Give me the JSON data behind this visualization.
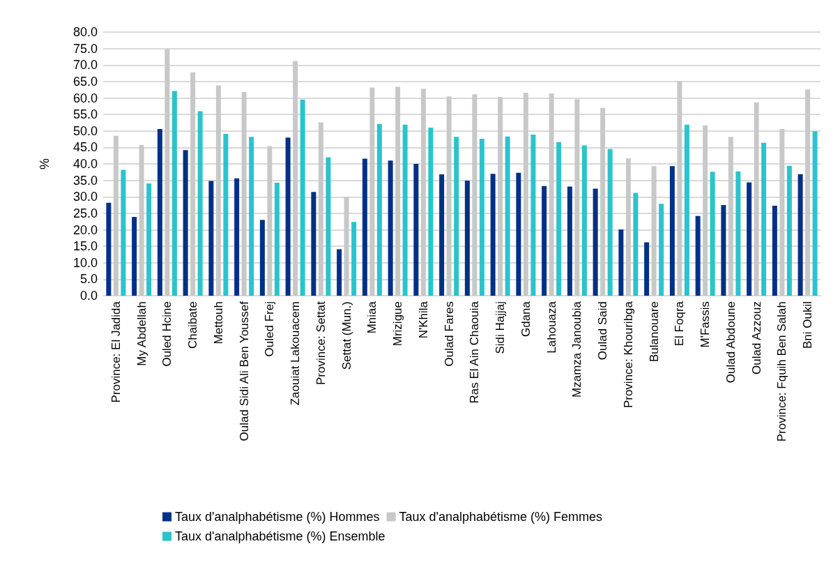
{
  "chart_data": {
    "type": "bar",
    "ylabel": "%",
    "categories": [
      "Province: El Jadida",
      "My Abdellah",
      "Ouled Hcine",
      "Chaibate",
      "Mettouh",
      "Oulad Sidi Ali Ben Youssef",
      "Ouled Frej",
      "Zaouiat Lakouacem",
      "Province: Settat",
      "Settat (Mun.)",
      "Mniaa",
      "Mrizigue",
      "N'Khila",
      "Oulad Fares",
      "Ras El Ain Chaouia",
      "Sidi Hajjaj",
      "Gdana",
      "Lahouaza",
      "Mzamza Janoubia",
      "Oulad Said",
      "Province: Khouribga",
      "Bulanouare",
      "El Foqra",
      "M'Fassis",
      "Oulad Abdoune",
      "Oulad Azzouz",
      "Province: Fquih Ben Salah",
      "Bni Oukil"
    ],
    "series": [
      {
        "name": "Taux d'analphabétisme (%) Hommes",
        "color": "#003087",
        "values": [
          28.2,
          23.9,
          50.6,
          44.2,
          34.8,
          35.6,
          23.0,
          48.0,
          31.5,
          14.1,
          41.6,
          41.0,
          40.0,
          36.8,
          34.9,
          37.0,
          37.3,
          33.3,
          33.1,
          32.5,
          20.1,
          16.2,
          39.3,
          24.2,
          27.5,
          34.4,
          27.3,
          36.9
        ]
      },
      {
        "name": "Taux d'analphabétisme (%) Femmes",
        "color": "#c8c8c8",
        "values": [
          48.5,
          45.7,
          74.8,
          67.8,
          63.8,
          61.8,
          45.4,
          71.2,
          52.6,
          30.0,
          63.2,
          63.4,
          62.8,
          60.5,
          61.1,
          60.3,
          61.6,
          61.4,
          59.6,
          57.0,
          41.7,
          39.3,
          65.2,
          51.7,
          48.2,
          58.6,
          50.6,
          62.6
        ]
      },
      {
        "name": "Taux d'analphabétisme (%) Ensemble",
        "color": "#2ac4cc",
        "values": [
          38.2,
          34.1,
          62.1,
          56.0,
          49.1,
          48.2,
          34.3,
          59.5,
          42.0,
          22.4,
          52.1,
          51.9,
          51.0,
          48.2,
          47.6,
          48.3,
          48.9,
          46.6,
          45.6,
          44.5,
          31.2,
          27.9,
          51.9,
          37.6,
          37.7,
          46.4,
          39.4,
          49.9
        ]
      }
    ],
    "ylim": [
      0,
      80
    ],
    "yticks": [
      {
        "value": 0,
        "label": "0.0"
      },
      {
        "value": 5,
        "label": "5.0"
      },
      {
        "value": 10,
        "label": "10.0"
      },
      {
        "value": 15,
        "label": "15.0"
      },
      {
        "value": 20,
        "label": "20.0"
      },
      {
        "value": 25,
        "label": "25.0"
      },
      {
        "value": 30,
        "label": "30.0"
      },
      {
        "value": 35,
        "label": "35.0"
      },
      {
        "value": 40,
        "label": "40.0"
      },
      {
        "value": 45,
        "label": "45.0"
      },
      {
        "value": 50,
        "label": "50.0"
      },
      {
        "value": 55,
        "label": "55.0"
      },
      {
        "value": 60,
        "label": "60.0"
      },
      {
        "value": 65,
        "label": "65.0"
      },
      {
        "value": 70,
        "label": "70.0"
      },
      {
        "value": 75,
        "label": "75.0"
      },
      {
        "value": 80,
        "label": "80.0"
      }
    ],
    "grid": "y",
    "legend": "bottom"
  }
}
